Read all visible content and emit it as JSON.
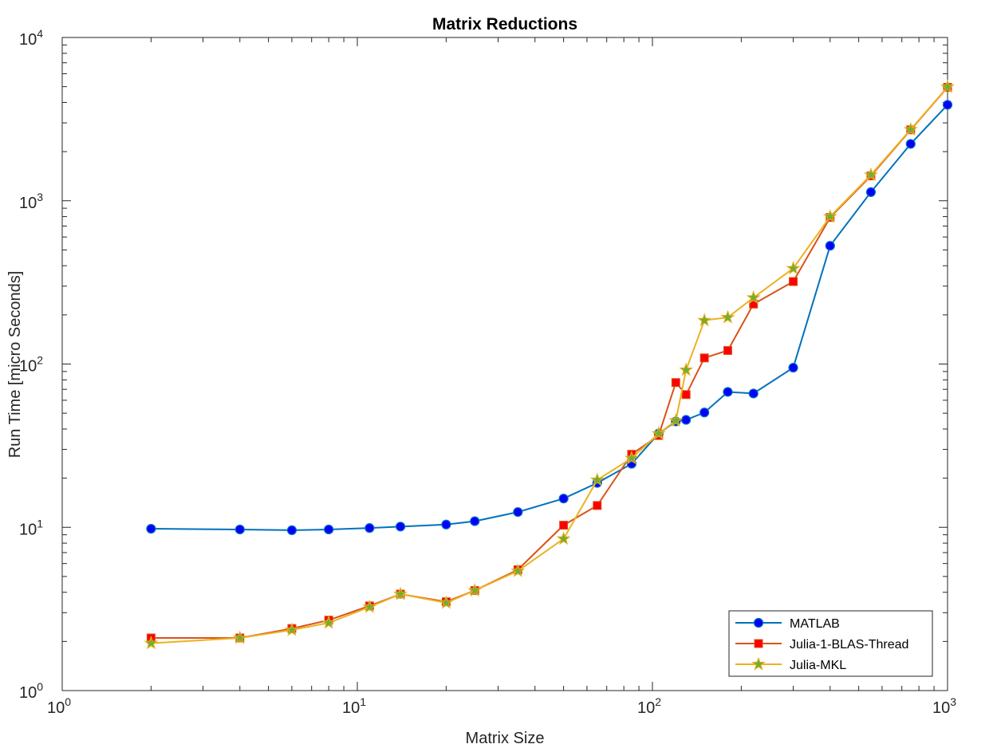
{
  "chart_data": {
    "type": "line",
    "title": "Matrix Reductions",
    "xlabel": "Matrix Size",
    "ylabel": "Run Time  [micro Seconds]",
    "xscale": "log",
    "yscale": "log",
    "xlim": [
      1,
      1000
    ],
    "ylim": [
      1,
      10000
    ],
    "grid": false,
    "legend_position": "bottom-right",
    "x_ticks": [
      {
        "base": "10",
        "exp": "0"
      },
      {
        "base": "10",
        "exp": "1"
      },
      {
        "base": "10",
        "exp": "2"
      },
      {
        "base": "10",
        "exp": "3"
      }
    ],
    "y_ticks": [
      {
        "base": "10",
        "exp": "0"
      },
      {
        "base": "10",
        "exp": "1"
      },
      {
        "base": "10",
        "exp": "2"
      },
      {
        "base": "10",
        "exp": "3"
      },
      {
        "base": "10",
        "exp": "4"
      }
    ],
    "series": [
      {
        "name": "MATLAB",
        "color": "#0072BD",
        "marker": "circle",
        "marker_color": "#0000FF",
        "x": [
          2,
          4,
          6,
          8,
          11,
          14,
          20,
          25,
          35,
          50,
          65,
          85,
          105,
          120,
          130,
          150,
          180,
          220,
          300,
          400,
          550,
          750,
          1000
        ],
        "y": [
          9.8,
          9.7,
          9.6,
          9.7,
          9.9,
          10.1,
          10.4,
          10.9,
          12.4,
          15,
          18.7,
          24.5,
          37.5,
          44.5,
          45.5,
          50.5,
          67.5,
          66,
          95,
          530,
          1130,
          2230,
          3870
        ]
      },
      {
        "name": "Julia-1-BLAS-Thread",
        "color": "#D95319",
        "marker": "square",
        "marker_color": "#FF0000",
        "x": [
          2,
          4,
          6,
          8,
          11,
          14,
          20,
          25,
          35,
          50,
          65,
          85,
          105,
          120,
          130,
          150,
          180,
          220,
          300,
          400,
          550,
          750,
          1000
        ],
        "y": [
          2.1,
          2.1,
          2.4,
          2.7,
          3.3,
          3.9,
          3.5,
          4.1,
          5.5,
          10.3,
          13.6,
          28,
          36.5,
          77,
          65,
          109,
          121,
          233,
          320,
          790,
          1420,
          2720,
          4950
        ]
      },
      {
        "name": "Julia-MKL",
        "color": "#EDB120",
        "marker": "star",
        "marker_color": "#77AC30",
        "x": [
          2,
          4,
          6,
          8,
          11,
          14,
          20,
          25,
          35,
          50,
          65,
          85,
          105,
          120,
          130,
          150,
          180,
          220,
          300,
          400,
          550,
          750,
          1000
        ],
        "y": [
          1.95,
          2.1,
          2.35,
          2.6,
          3.25,
          3.9,
          3.45,
          4.1,
          5.4,
          8.5,
          19.5,
          26.5,
          37.5,
          45,
          92,
          185,
          193,
          255,
          385,
          800,
          1440,
          2730,
          4980
        ]
      }
    ]
  }
}
